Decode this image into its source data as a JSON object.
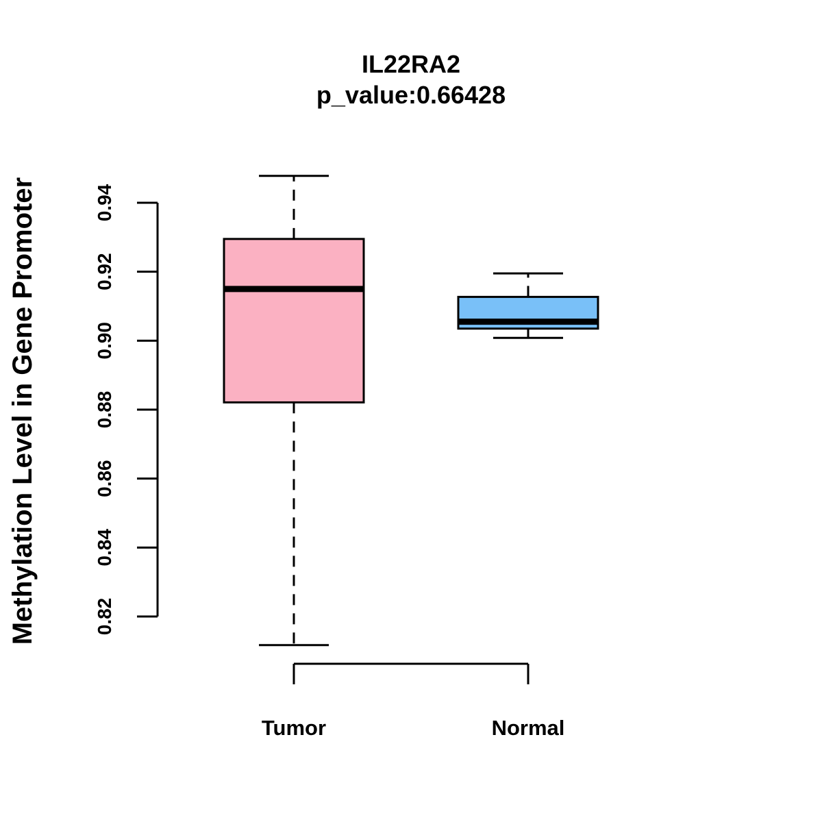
{
  "chart_data": {
    "type": "boxplot",
    "title": "IL22RA2",
    "subtitle": "p_value:0.66428",
    "xlabel": "",
    "ylabel": "Methylation Level in Gene Promoter",
    "ylim": [
      0.82,
      0.94
    ],
    "yticks": [
      0.82,
      0.84,
      0.86,
      0.88,
      0.9,
      0.92,
      0.94
    ],
    "ytick_labels": [
      "0.82",
      "0.84",
      "0.86",
      "0.88",
      "0.90",
      "0.92",
      "0.94"
    ],
    "grid": false,
    "categories": [
      "Tumor",
      "Normal"
    ],
    "series": [
      {
        "name": "Tumor",
        "whisker_low": 0.8117,
        "q1": 0.8821,
        "median": 0.915,
        "q3": 0.9295,
        "whisker_high": 0.9478,
        "color": "#FBB1C2"
      },
      {
        "name": "Normal",
        "whisker_low": 0.9008,
        "q1": 0.9035,
        "median": 0.9055,
        "q3": 0.9127,
        "whisker_high": 0.9195,
        "color": "#79C0F8"
      }
    ]
  }
}
